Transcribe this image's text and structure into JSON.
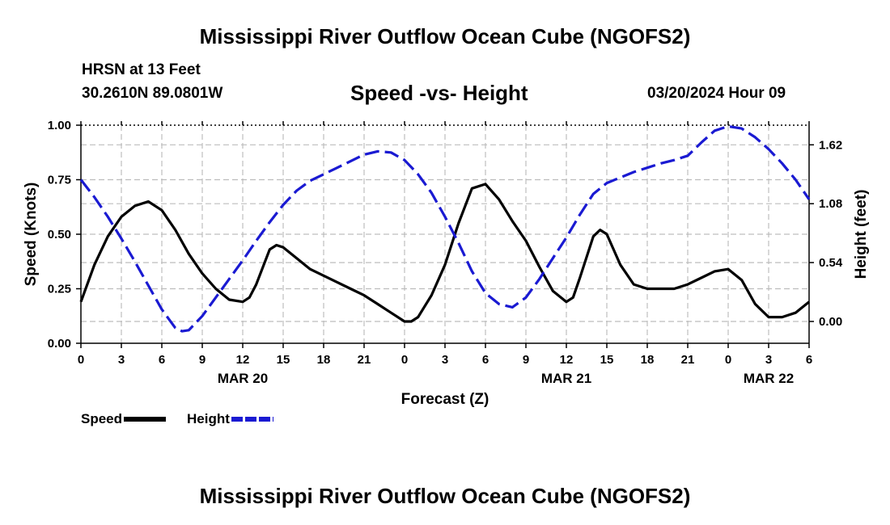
{
  "header": {
    "title": "Mississippi River Outflow Ocean Cube (NGOFS2)",
    "station": "HRSN at 13 Feet",
    "coords": "30.2610N  89.0801W",
    "subtitle": "Speed -vs- Height",
    "datetime": "03/20/2024 Hour 09"
  },
  "footer": {
    "title": "Mississippi River Outflow Ocean Cube (NGOFS2)"
  },
  "legend": [
    {
      "label": "Speed",
      "color": "#000000",
      "style": "solid"
    },
    {
      "label": "Height",
      "color": "#1a1ad2",
      "style": "dashed"
    }
  ],
  "chart_data": {
    "type": "line",
    "title": "Speed -vs- Height",
    "xlabel": "Forecast (Z)",
    "ylabel": "Speed (Knots)",
    "y2label": "Height (feet)",
    "xlim": [
      0,
      54
    ],
    "ylim": [
      0,
      1
    ],
    "y2lim": [
      -0.2,
      1.8
    ],
    "x_ticks": [
      0,
      3,
      6,
      9,
      12,
      15,
      18,
      21,
      24,
      27,
      30,
      33,
      36,
      39,
      42,
      45,
      48,
      51,
      54
    ],
    "x_tick_labels": [
      "0",
      "3",
      "6",
      "9",
      "12",
      "15",
      "18",
      "21",
      "0",
      "3",
      "6",
      "9",
      "12",
      "15",
      "18",
      "21",
      "0",
      "3",
      "6"
    ],
    "date_labels": [
      {
        "x": 12,
        "label": "MAR 20"
      },
      {
        "x": 36,
        "label": "MAR 21"
      },
      {
        "x": 51,
        "label": "MAR 22"
      }
    ],
    "y_ticks": [
      0,
      0.25,
      0.5,
      0.75,
      1.0
    ],
    "y_tick_labels": [
      "0.00",
      "0.25",
      "0.50",
      "0.75",
      "1.00"
    ],
    "y2_ticks": [
      0,
      0.54,
      1.08,
      1.62
    ],
    "y2_tick_labels": [
      "0.00",
      "0.54",
      "1.08",
      "1.62"
    ],
    "grid": true,
    "series": [
      {
        "name": "Speed",
        "axis": "left",
        "color": "#000000",
        "style": "solid",
        "x": [
          0,
          1,
          2,
          3,
          4,
          5,
          6,
          7,
          8,
          9,
          10,
          11,
          12,
          12.5,
          13,
          14,
          14.5,
          15,
          16,
          17,
          18,
          19,
          20,
          21,
          22,
          23,
          24,
          24.5,
          25,
          26,
          27,
          28,
          29,
          30,
          31,
          32,
          33,
          34,
          35,
          36,
          36.5,
          37,
          38,
          38.5,
          39,
          40,
          41,
          42,
          43,
          44,
          45,
          46,
          47,
          48,
          49,
          50,
          51,
          52,
          53,
          54
        ],
        "values": [
          0.19,
          0.36,
          0.49,
          0.58,
          0.63,
          0.65,
          0.61,
          0.52,
          0.41,
          0.32,
          0.25,
          0.2,
          0.19,
          0.21,
          0.27,
          0.43,
          0.45,
          0.44,
          0.39,
          0.34,
          0.31,
          0.28,
          0.25,
          0.22,
          0.18,
          0.14,
          0.1,
          0.1,
          0.12,
          0.22,
          0.36,
          0.55,
          0.71,
          0.73,
          0.66,
          0.56,
          0.47,
          0.35,
          0.24,
          0.19,
          0.21,
          0.3,
          0.49,
          0.52,
          0.5,
          0.36,
          0.27,
          0.25,
          0.25,
          0.25,
          0.27,
          0.3,
          0.33,
          0.34,
          0.29,
          0.18,
          0.12,
          0.12,
          0.14,
          0.19
        ]
      },
      {
        "name": "Height",
        "axis": "right",
        "color": "#1a1ad2",
        "style": "dashed",
        "x": [
          0,
          1,
          2,
          3,
          4,
          5,
          6,
          7,
          7.5,
          8,
          9,
          10,
          11,
          12,
          13,
          14,
          15,
          16,
          17,
          18,
          19,
          20,
          21,
          22,
          23,
          24,
          25,
          26,
          27,
          28,
          29,
          30,
          31,
          32,
          33,
          34,
          35,
          36,
          37,
          38,
          39,
          40,
          41,
          42,
          43,
          44,
          45,
          46,
          47,
          48,
          49,
          50,
          51,
          52,
          53,
          54
        ],
        "values": [
          1.3,
          1.14,
          0.96,
          0.76,
          0.55,
          0.33,
          0.11,
          -0.06,
          -0.09,
          -0.08,
          0.05,
          0.22,
          0.39,
          0.56,
          0.74,
          0.91,
          1.07,
          1.2,
          1.29,
          1.35,
          1.41,
          1.47,
          1.53,
          1.56,
          1.55,
          1.48,
          1.35,
          1.18,
          0.96,
          0.72,
          0.46,
          0.26,
          0.16,
          0.13,
          0.22,
          0.39,
          0.58,
          0.77,
          0.98,
          1.17,
          1.27,
          1.32,
          1.37,
          1.41,
          1.45,
          1.48,
          1.52,
          1.64,
          1.75,
          1.79,
          1.77,
          1.69,
          1.58,
          1.45,
          1.3,
          1.12
        ]
      }
    ]
  }
}
